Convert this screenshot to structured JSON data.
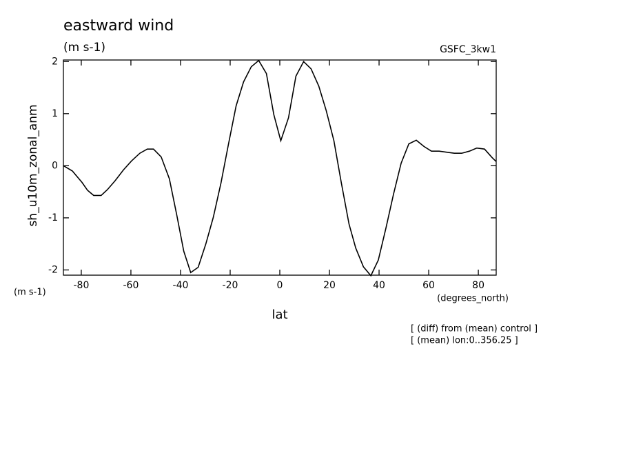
{
  "chart_data": {
    "type": "line",
    "title": "eastward wind",
    "subtitle": "(m s-1)",
    "dataset": "GSFC_3kw1",
    "y_label": "sh_u10m_zonal_anm",
    "y_units": "(m s-1)",
    "x_units": "(degrees_north)",
    "x_label": "lat",
    "notes": [
      "[ (diff) from (mean) control ]",
      "[ (mean) lon:0..356.25 ]"
    ],
    "x": [
      -87.2,
      -83.6,
      -79.7,
      -77.5,
      -75,
      -72,
      -69.5,
      -66.4,
      -63,
      -59.8,
      -56.4,
      -53.4,
      -50.9,
      -47.8,
      -44.5,
      -41.5,
      -38.7,
      -35.9,
      -32.9,
      -29.8,
      -26.8,
      -23.7,
      -20.7,
      -17.6,
      -14.6,
      -11.5,
      -8.5,
      -5.4,
      -2.4,
      0.4,
      3.5,
      6.5,
      9.6,
      12.6,
      15.7,
      18.7,
      21.8,
      24.8,
      27.9,
      30.6,
      33.7,
      36.7,
      39.7,
      42.8,
      45.8,
      48.9,
      52,
      55,
      58.1,
      61.1,
      64.2,
      67.2,
      70.3,
      73.3,
      76.4,
      79.4,
      82.5,
      85.5,
      87.2
    ],
    "series": [
      {
        "color": "#000000",
        "values": [
          0,
          -0.1,
          -0.32,
          -0.47,
          -0.57,
          -0.57,
          -0.46,
          -0.29,
          -0.08,
          0.09,
          0.24,
          0.32,
          0.32,
          0.17,
          -0.25,
          -0.95,
          -1.64,
          -2.05,
          -1.95,
          -1.5,
          -0.99,
          -0.33,
          0.41,
          1.15,
          1.61,
          1.9,
          2.02,
          1.77,
          0.98,
          0.48,
          0.92,
          1.72,
          2.0,
          1.86,
          1.53,
          1.06,
          0.48,
          -0.33,
          -1.12,
          -1.58,
          -1.94,
          -2.11,
          -1.81,
          -1.19,
          -0.55,
          0.05,
          0.42,
          0.49,
          0.37,
          0.28,
          0.28,
          0.26,
          0.24,
          0.24,
          0.28,
          0.34,
          0.32,
          0.16,
          0.08
        ]
      }
    ],
    "xlim": [
      -87.2,
      87.2
    ],
    "xticks": [
      -80,
      -60,
      -40,
      -20,
      0,
      20,
      40,
      60,
      80
    ],
    "ylim": [
      -2.1,
      2.03
    ],
    "yticks": [
      -2,
      -1,
      0,
      1,
      2
    ]
  }
}
